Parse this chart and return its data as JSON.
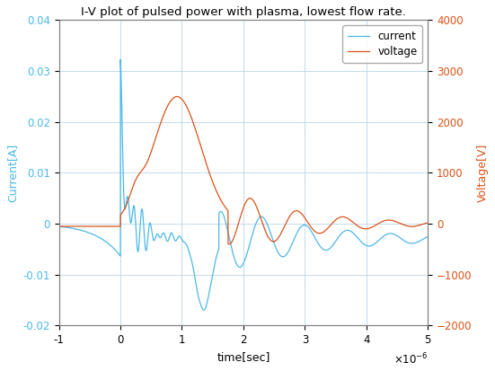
{
  "title": "I-V plot of pulsed power with plasma, lowest flow rate.",
  "xlabel": "time[sec]",
  "ylabel_left": "Current[A]",
  "ylabel_right": "Voltage[V]",
  "xlim": [
    -1e-06,
    5e-06
  ],
  "ylim_left": [
    -0.02,
    0.04
  ],
  "ylim_right": [
    -2000,
    4000
  ],
  "xticks": [
    -1e-06,
    0,
    1e-06,
    2e-06,
    3e-06,
    4e-06,
    5e-06
  ],
  "xticklabels": [
    "-1",
    "0",
    "1",
    "2",
    "3",
    "4",
    "5"
  ],
  "yticks_left": [
    -0.02,
    -0.01,
    0,
    0.01,
    0.02,
    0.03,
    0.04
  ],
  "yticks_right": [
    -2000,
    -1000,
    0,
    1000,
    2000,
    3000,
    4000
  ],
  "current_color": "#4db8e8",
  "voltage_color": "#d95319",
  "legend_labels": [
    "current",
    "voltage"
  ],
  "bg_color": "#ffffff",
  "grid_color": "#b8d4e8",
  "axis_color": "#808080",
  "title_fontsize": 9.5,
  "label_fontsize": 9,
  "tick_fontsize": 8.5
}
